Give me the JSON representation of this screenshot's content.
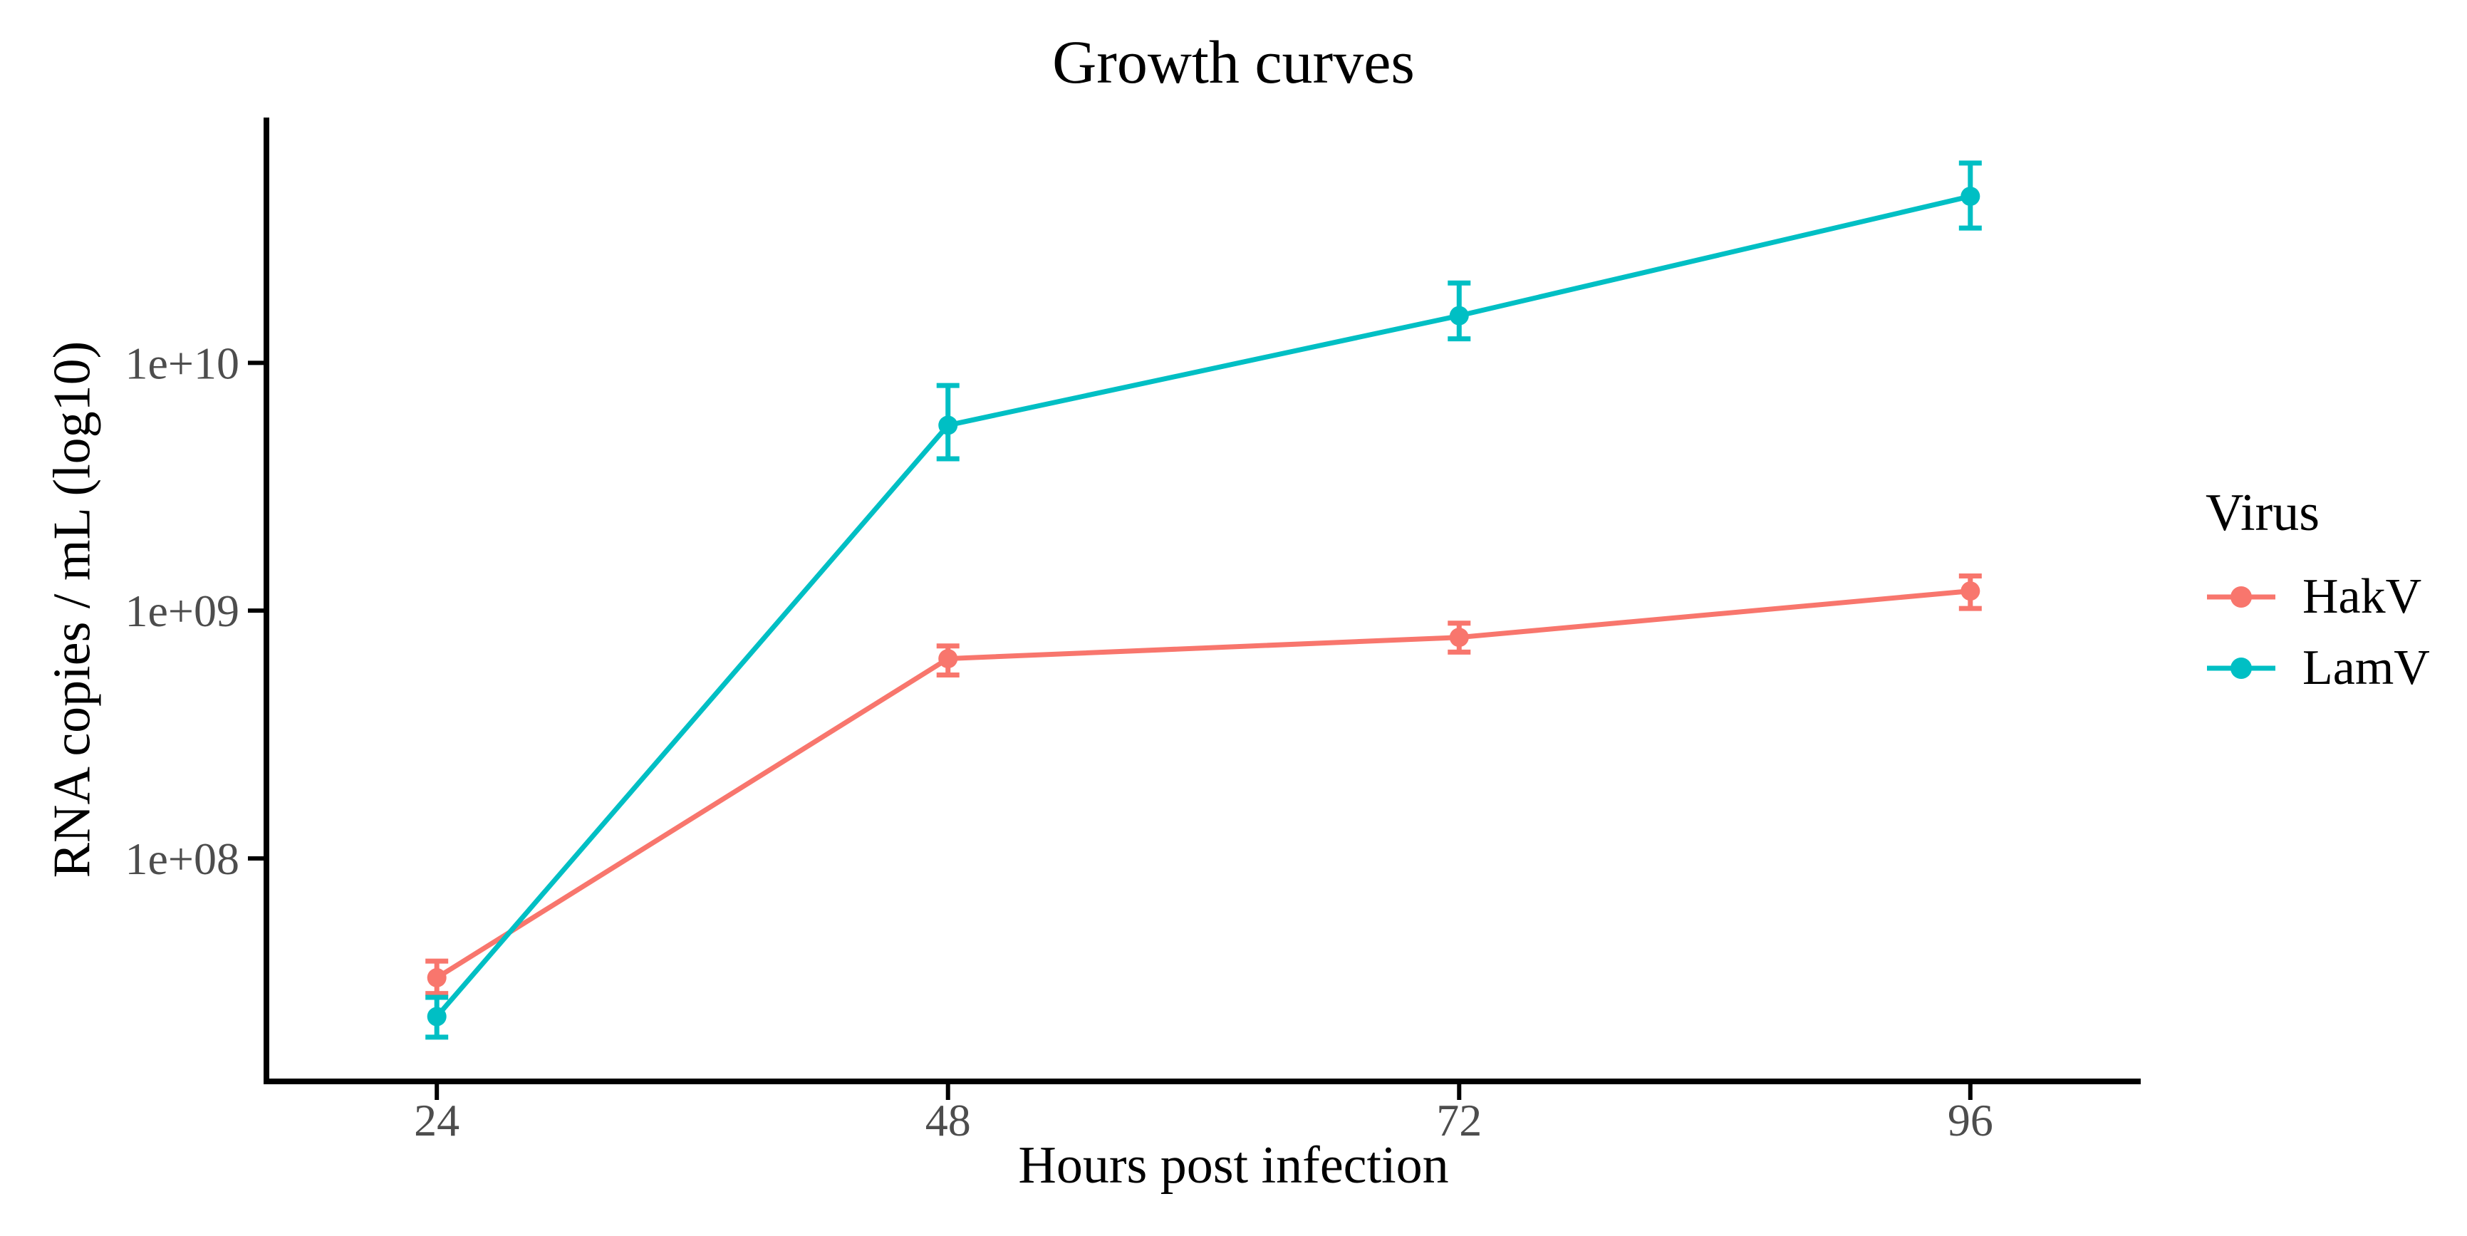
{
  "chart_data": {
    "type": "line",
    "title": "Growth curves",
    "xlabel": "Hours post infection",
    "ylabel": "RNA copies / mL (log10)",
    "legend_title": "Virus",
    "legend_position": "right",
    "grid": false,
    "background": "#ffffff",
    "axis_color": "#000000",
    "tick_label_color": "#4d4d4d",
    "y_scale": "log10",
    "x": [
      24,
      48,
      72,
      96
    ],
    "x_ticks": [
      {
        "value": 24,
        "label": "24"
      },
      {
        "value": 48,
        "label": "48"
      },
      {
        "value": 72,
        "label": "72"
      },
      {
        "value": 96,
        "label": "96"
      }
    ],
    "y_ticks": [
      {
        "value": 100000000.0,
        "label": "1e+08"
      },
      {
        "value": 1000000000.0,
        "label": "1e+09"
      },
      {
        "value": 10000000000.0,
        "label": "1e+10"
      }
    ],
    "xlim": [
      16,
      104
    ],
    "ylim_log10": [
      7.1,
      10.99
    ],
    "series": [
      {
        "name": "HakV",
        "color": "#F8766D",
        "values": [
          33000000.0,
          640000000.0,
          780000000.0,
          1200000000.0
        ],
        "err_lo": [
          28500000.0,
          550000000.0,
          680000000.0,
          1020000000.0
        ],
        "err_hi": [
          38500000.0,
          720000000.0,
          890000000.0,
          1380000000.0
        ]
      },
      {
        "name": "LamV",
        "color": "#00BFC4",
        "values": [
          23000000.0,
          5600000000.0,
          15500000000.0,
          47000000000.0
        ],
        "err_lo": [
          19000000.0,
          4100000000.0,
          12500000000.0,
          35000000000.0
        ],
        "err_hi": [
          27500000.0,
          8100000000.0,
          21000000000.0,
          64000000000.0
        ]
      }
    ]
  }
}
